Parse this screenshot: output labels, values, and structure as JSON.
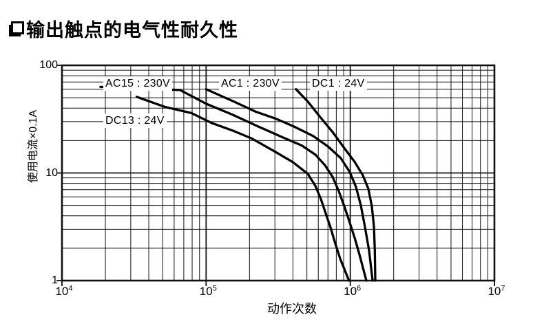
{
  "header": {
    "bullet_icon": "shadowed-square",
    "title": "输出触点的电气性耐久性"
  },
  "chart_data": {
    "type": "line",
    "title": "输出触点的电气性耐久性",
    "xlabel": "动作次数",
    "ylabel": "使用电流×0.1A",
    "x_scale": "log",
    "y_scale": "log",
    "xlim": [
      10000,
      10000000
    ],
    "ylim": [
      1,
      100
    ],
    "grid": "full log grid, minor and major lines, black on white",
    "line_color": "#000000",
    "x_ticks": [
      {
        "base": "10",
        "exp": "4"
      },
      {
        "base": "10",
        "exp": "5"
      },
      {
        "base": "10",
        "exp": "6"
      },
      {
        "base": "10",
        "exp": "7"
      }
    ],
    "x_tick_values": [
      10000,
      100000,
      1000000,
      10000000
    ],
    "y_ticks": [
      "100",
      "10",
      "1"
    ],
    "y_tick_values": [
      100,
      10,
      1
    ],
    "series": [
      {
        "label": "AC15 : 230V",
        "points": [
          [
            18500,
            63
          ],
          [
            21500,
            63
          ],
          [
            66000,
            59
          ],
          [
            100000,
            44
          ],
          [
            151000,
            35
          ],
          [
            230000,
            27
          ],
          [
            338000,
            21.5
          ],
          [
            460000,
            18
          ],
          [
            573000,
            14.8
          ],
          [
            668000,
            11.8
          ],
          [
            754000,
            9.2
          ],
          [
            832000,
            6.8
          ],
          [
            909000,
            4.9
          ],
          [
            982000,
            3.6
          ],
          [
            1072000,
            2.5
          ],
          [
            1158000,
            1.75
          ],
          [
            1293000,
            1
          ]
        ]
      },
      {
        "label": "AC1 : 230V",
        "points": [
          [
            100000,
            60
          ],
          [
            156000,
            46
          ],
          [
            222000,
            37
          ],
          [
            303000,
            32
          ],
          [
            407000,
            27
          ],
          [
            554000,
            22
          ],
          [
            706000,
            17.5
          ],
          [
            860000,
            13.7
          ],
          [
            993000,
            10.2
          ],
          [
            1096000,
            7.4
          ],
          [
            1184000,
            5
          ],
          [
            1265000,
            3.15
          ],
          [
            1351000,
            1.9
          ],
          [
            1428000,
            1
          ]
        ]
      },
      {
        "label": "DC1 : 24V",
        "points": [
          [
            420000,
            60
          ],
          [
            508000,
            46
          ],
          [
            619000,
            33
          ],
          [
            754000,
            24
          ],
          [
            909000,
            17
          ],
          [
            1072000,
            12.7
          ],
          [
            1224000,
            9.5
          ],
          [
            1336000,
            7.1
          ],
          [
            1412000,
            4.9
          ],
          [
            1460000,
            3.15
          ],
          [
            1480000,
            1.9
          ],
          [
            1492000,
            1
          ]
        ]
      },
      {
        "label": "DC13 : 24V",
        "points": [
          [
            33000,
            51
          ],
          [
            52000,
            41
          ],
          [
            79000,
            36
          ],
          [
            110000,
            29
          ],
          [
            156000,
            24.5
          ],
          [
            206000,
            21
          ],
          [
            286000,
            16.4
          ],
          [
            400000,
            12.6
          ],
          [
            508000,
            9.8
          ],
          [
            573000,
            7.6
          ],
          [
            626000,
            5.7
          ],
          [
            676000,
            4.2
          ],
          [
            730000,
            3.1
          ],
          [
            788000,
            2.2
          ],
          [
            851000,
            1.6
          ],
          [
            980000,
            1
          ]
        ]
      }
    ]
  }
}
